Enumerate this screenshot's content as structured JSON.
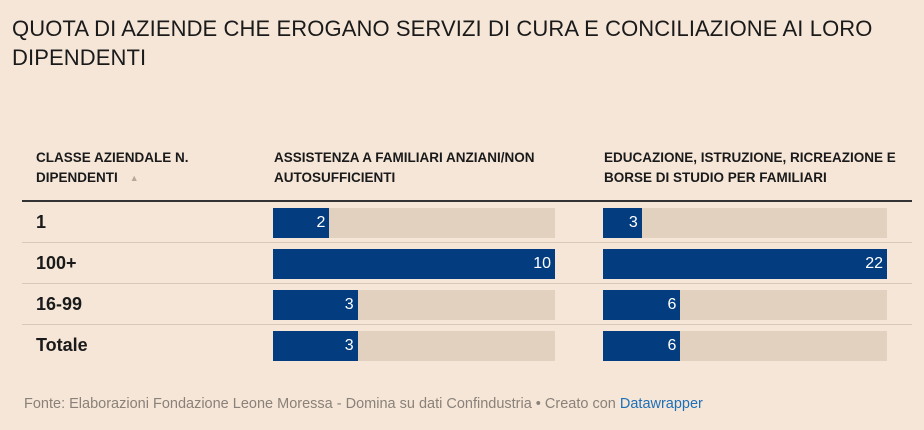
{
  "title": "QUOTA DI AZIENDE CHE EROGANO SERVIZI DI CURA E CONCILIAZIONE AI LORO DIPENDENTI",
  "columns": [
    "CLASSE AZIENDALE N. DIPENDENTI",
    "ASSISTENZA A FAMILIARI ANZIANI/NON AUTOSUFFICIENTI",
    "EDUCAZIONE, ISTRUZIONE, RICREAZIONE E BORSE DI STUDIO PER FAMILIARI"
  ],
  "footer": {
    "text": "Fonte: Elaborazioni Fondazione Leone Moressa - Domina su dati Confindustria • Creato con ",
    "link": "Datawrapper"
  },
  "colors": {
    "bar": "#033d80",
    "track": "#e3d1c0",
    "background": "#f5e6d8"
  },
  "chart_data": {
    "type": "table",
    "title": "QUOTA DI AZIENDE CHE EROGANO SERVIZI DI CURA E CONCILIAZIONE AI LORO DIPENDENTI",
    "categories": [
      "1",
      "100+",
      "16-99",
      "Totale"
    ],
    "series": [
      {
        "name": "ASSISTENZA A FAMILIARI ANZIANI/NON AUTOSUFFICIENTI",
        "values": [
          2,
          10,
          3,
          3
        ],
        "max": 10
      },
      {
        "name": "EDUCAZIONE, ISTRUZIONE, RICREAZIONE E BORSE DI STUDIO PER FAMILIARI",
        "values": [
          3,
          22,
          6,
          6
        ],
        "max": 22
      }
    ]
  }
}
